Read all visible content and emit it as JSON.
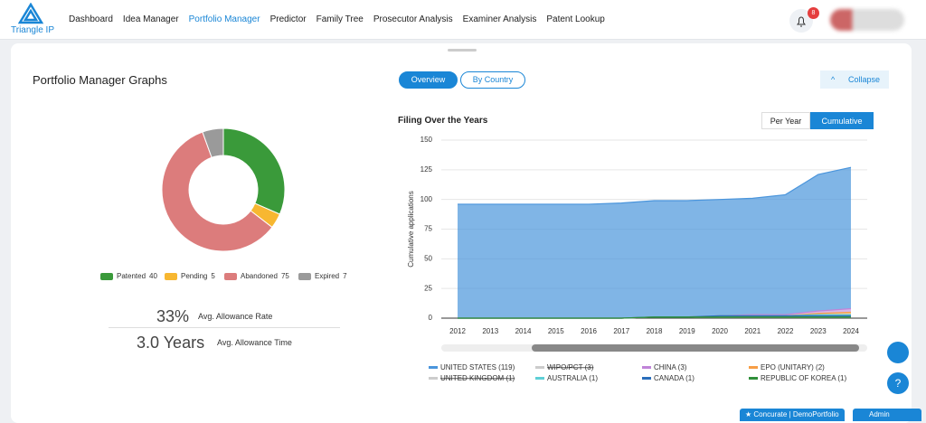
{
  "nav": {
    "logo": "Triangle IP",
    "items": [
      "Dashboard",
      "Idea Manager",
      "Portfolio Manager",
      "Predictor",
      "Family Tree",
      "Prosecutor Analysis",
      "Examiner Analysis",
      "Patent Lookup"
    ],
    "active": 2,
    "notifications": 8
  },
  "panel": {
    "title": "Portfolio Manager Graphs",
    "tabs": [
      "Overview",
      "By Country"
    ],
    "collapse": "Collapse"
  },
  "donut": {
    "type": "pie",
    "categories": [
      "Patented",
      "Pending",
      "Abandoned",
      "Expired"
    ],
    "values": [
      40,
      5,
      75,
      7
    ],
    "colors": [
      "#3a9a3a",
      "#f7b731",
      "#dc7c7c",
      "#9a9a9a"
    ]
  },
  "stats": [
    {
      "value": "33%",
      "label": "Avg. Allowance Rate"
    },
    {
      "value": "3.0 Years",
      "label": "Avg. Allowance Time"
    }
  ],
  "area": {
    "type": "area",
    "stacked": true,
    "title": "Filing Over the Years",
    "toggle": [
      "Per Year",
      "Cumulative"
    ],
    "toggle_active": 1,
    "ylabel": "Cumulative applications",
    "x": [
      2012,
      2013,
      2014,
      2015,
      2016,
      2017,
      2018,
      2019,
      2020,
      2021,
      2022,
      2023,
      2024
    ],
    "ylim": [
      0,
      150
    ],
    "yticks": [
      0,
      25,
      50,
      75,
      100,
      125,
      150
    ],
    "series": [
      {
        "name": "UNITED STATES (119)",
        "color": "#4a95dc",
        "values": [
          96,
          96,
          96,
          96,
          96,
          97,
          98,
          98,
          98,
          98,
          101,
          115,
          119
        ]
      },
      {
        "name": "WIPO/PCT (3)",
        "color": "#b0b0b0",
        "hidden": true
      },
      {
        "name": "CHINA (3)",
        "color": "#c084d8",
        "values": [
          0,
          0,
          0,
          0,
          0,
          0,
          0,
          0,
          0,
          1,
          1,
          2,
          3
        ]
      },
      {
        "name": "EPO (UNITARY) (2)",
        "color": "#f79e46",
        "values": [
          0,
          0,
          0,
          0,
          0,
          0,
          0,
          0,
          0,
          0,
          0,
          1,
          2
        ]
      },
      {
        "name": "UNITED KINGDOM (1)",
        "color": "#b0b0b0",
        "hidden": true
      },
      {
        "name": "AUSTRALIA (1)",
        "color": "#5ecfd6",
        "values": [
          0,
          0,
          0,
          0,
          0,
          0,
          0,
          0,
          0,
          0,
          0,
          1,
          1
        ]
      },
      {
        "name": "CANADA (1)",
        "color": "#2a6ebb",
        "values": [
          0,
          0,
          0,
          0,
          0,
          0,
          0,
          0,
          1,
          1,
          1,
          1,
          1
        ]
      },
      {
        "name": "REPUBLIC OF KOREA (1)",
        "color": "#2f8f3a",
        "values": [
          0,
          0,
          0,
          0,
          0,
          0,
          1,
          1,
          1,
          1,
          1,
          1,
          1
        ]
      }
    ]
  },
  "footer": {
    "buttons": [
      "Concurate",
      "DemoPortfolio",
      "Admin"
    ]
  }
}
